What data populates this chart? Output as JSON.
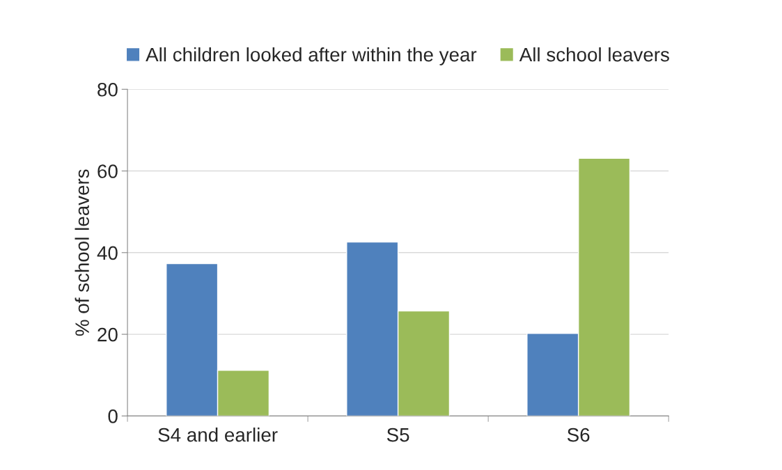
{
  "chart_data": {
    "type": "bar",
    "ylabel": "% of school leavers",
    "categories": [
      "S4 and earlier",
      "S5",
      "S6"
    ],
    "series": [
      {
        "name": "All children looked after within the year",
        "color": "#4f81bd",
        "values": [
          37.3,
          42.6,
          20.2
        ]
      },
      {
        "name": "All school leavers",
        "color": "#9bbb59",
        "values": [
          11.2,
          25.7,
          63.1
        ]
      }
    ],
    "ylim": [
      0,
      80
    ],
    "yticks": [
      0,
      20,
      40,
      60,
      80
    ],
    "grid": "y",
    "legend": "top"
  }
}
